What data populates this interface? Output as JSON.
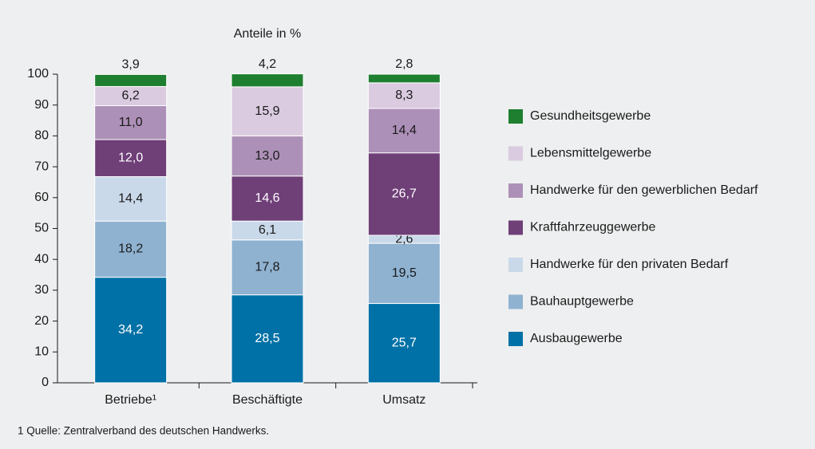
{
  "chart_data": {
    "type": "stacked_bar",
    "title": "Anteile in %",
    "categories": [
      "Betriebe¹",
      "Beschäftigte",
      "Umsatz"
    ],
    "series": [
      {
        "name": "Ausbaugewerbe",
        "color": "#0071a6",
        "label_color": "#ffffff",
        "values": [
          34.2,
          28.5,
          25.7
        ],
        "value_labels": [
          "34,2",
          "28,5",
          "25,7"
        ]
      },
      {
        "name": "Bauhauptgewerbe",
        "color": "#8fb2d1",
        "label_color": "#1a1a1a",
        "values": [
          18.2,
          17.8,
          19.5
        ],
        "value_labels": [
          "18,2",
          "17,8",
          "19,5"
        ]
      },
      {
        "name": "Handwerke für den privaten Bedarf",
        "color": "#c9d9ea",
        "label_color": "#1a1a1a",
        "values": [
          14.4,
          6.1,
          2.6
        ],
        "value_labels": [
          "14,4",
          "6,1",
          "2,6"
        ]
      },
      {
        "name": "Kraftfahrzeuggewerbe",
        "color": "#6f3f78",
        "label_color": "#ffffff",
        "values": [
          12.0,
          14.6,
          26.7
        ],
        "value_labels": [
          "12,0",
          "14,6",
          "26,7"
        ]
      },
      {
        "name": "Handwerke für den gewerblichen Bedarf",
        "color": "#ad90b8",
        "label_color": "#1a1a1a",
        "values": [
          11.0,
          13.0,
          14.4
        ],
        "value_labels": [
          "11,0",
          "13,0",
          "14,4"
        ]
      },
      {
        "name": "Lebensmittelgewerbe",
        "color": "#dacbe0",
        "label_color": "#1a1a1a",
        "values": [
          6.2,
          15.9,
          8.3
        ],
        "value_labels": [
          "6,2",
          "15,9",
          "8,3"
        ]
      },
      {
        "name": "Gesundheitsgewerbe",
        "color": "#1d7f2f",
        "label_color": "#1a1a1a",
        "values": [
          3.9,
          4.2,
          2.8
        ],
        "value_labels": [
          "3,9",
          "4,2",
          "2,8"
        ]
      }
    ],
    "ylim": [
      0,
      100
    ],
    "yticks": [
      0,
      10,
      20,
      30,
      40,
      50,
      60,
      70,
      80,
      90,
      100
    ],
    "footnote": "1 Quelle: Zentralverband des deutschen Handwerks."
  }
}
